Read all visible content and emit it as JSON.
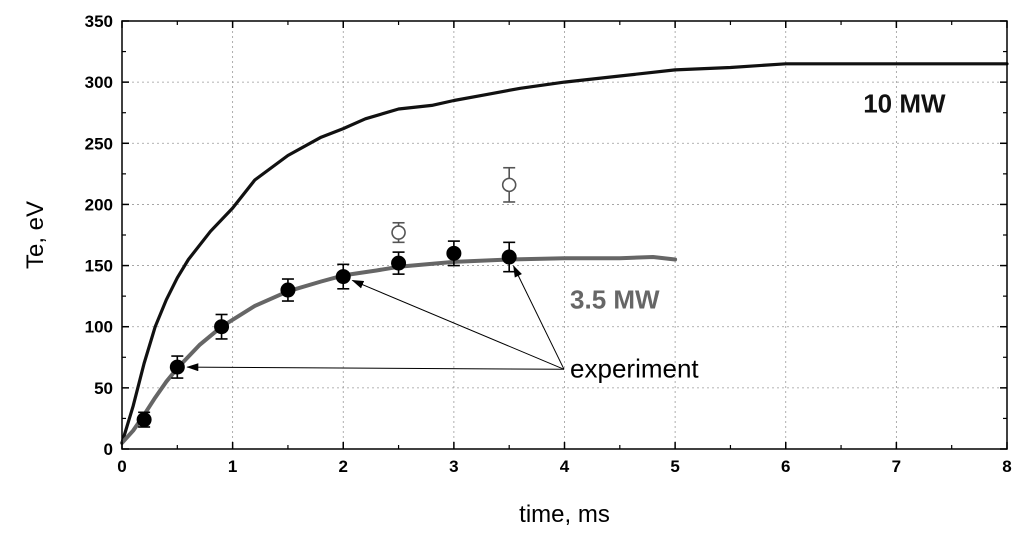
{
  "chart_data": {
    "type": "line",
    "xlabel": "time, ms",
    "ylabel": "Te, eV",
    "xlim": [
      0,
      8
    ],
    "ylim": [
      0,
      350
    ],
    "x_ticks": [
      "0",
      "1",
      "2",
      "3",
      "4",
      "5",
      "6",
      "7",
      "8"
    ],
    "y_ticks": [
      "0",
      "50",
      "100",
      "150",
      "200",
      "250",
      "300",
      "350"
    ],
    "grid": true,
    "series": [
      {
        "name": "10 MW",
        "color": "#111111",
        "x": [
          0,
          0.1,
          0.2,
          0.3,
          0.4,
          0.5,
          0.6,
          0.8,
          1.0,
          1.2,
          1.5,
          1.8,
          2.0,
          2.2,
          2.5,
          2.8,
          3.0,
          3.3,
          3.6,
          4.0,
          4.5,
          5.0,
          5.5,
          6.0,
          7.0,
          8.0
        ],
        "values": [
          5,
          35,
          70,
          100,
          122,
          140,
          155,
          178,
          197,
          220,
          240,
          255,
          262,
          270,
          278,
          281,
          285,
          290,
          295,
          300,
          305,
          310,
          312,
          315,
          315,
          315
        ]
      },
      {
        "name": "3.5 MW",
        "color": "#666666",
        "x": [
          0,
          0.1,
          0.2,
          0.3,
          0.4,
          0.5,
          0.7,
          0.9,
          1.2,
          1.5,
          1.8,
          2.0,
          2.3,
          2.5,
          3.0,
          3.5,
          4.0,
          4.5,
          4.8,
          5.0
        ],
        "values": [
          5,
          15,
          28,
          42,
          55,
          66,
          85,
          100,
          117,
          129,
          137,
          142,
          146,
          149,
          153,
          155,
          156,
          156,
          157,
          155
        ]
      }
    ],
    "experiment_points": [
      {
        "x": 0.2,
        "y": 24,
        "err": 6
      },
      {
        "x": 0.5,
        "y": 67,
        "err": 9
      },
      {
        "x": 0.9,
        "y": 100,
        "err": 10
      },
      {
        "x": 1.5,
        "y": 130,
        "err": 9
      },
      {
        "x": 2.0,
        "y": 141,
        "err": 10
      },
      {
        "x": 2.5,
        "y": 152,
        "err": 9
      },
      {
        "x": 3.0,
        "y": 160,
        "err": 10
      },
      {
        "x": 3.5,
        "y": 157,
        "err": 12
      }
    ],
    "open_points": [
      {
        "x": 2.5,
        "y": 177,
        "err": 8
      },
      {
        "x": 3.5,
        "y": 216,
        "err": 14
      }
    ],
    "annotations": {
      "experiment": "experiment",
      "experiment_targets": [
        {
          "x": 0.5,
          "y": 67
        },
        {
          "x": 2.0,
          "y": 141
        },
        {
          "x": 3.5,
          "y": 157
        }
      ]
    }
  }
}
